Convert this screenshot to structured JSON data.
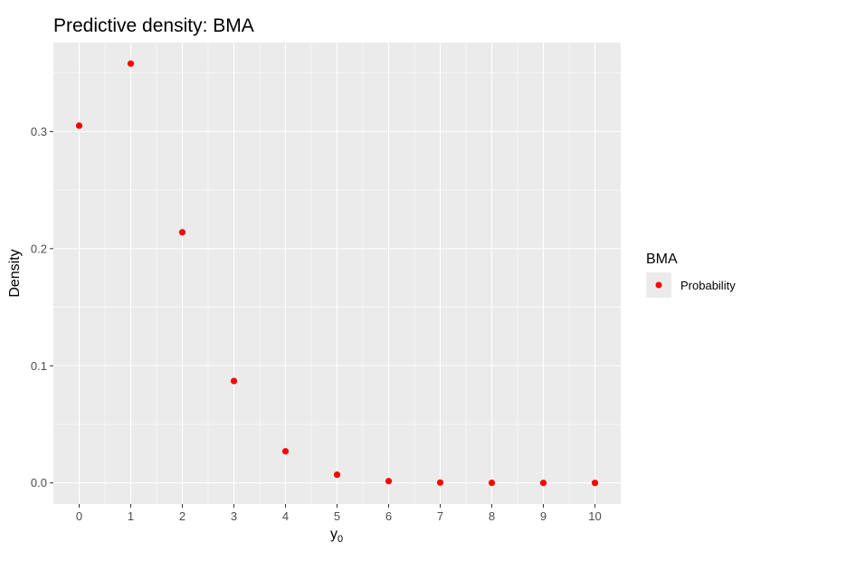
{
  "chart_data": {
    "type": "scatter",
    "title": "Predictive density: BMA",
    "xlabel_main": "y",
    "xlabel_sub": "0",
    "ylabel": "Density",
    "x": [
      0,
      1,
      2,
      3,
      4,
      5,
      6,
      7,
      8,
      9,
      10
    ],
    "series": [
      {
        "name": "Probability",
        "color": "#ff0000",
        "values": [
          0.305,
          0.358,
          0.214,
          0.087,
          0.027,
          0.007,
          0.0015,
          0.0003,
          0.0001,
          0.0,
          0.0
        ]
      }
    ],
    "xlim": [
      -0.5,
      10.5
    ],
    "ylim": [
      -0.018,
      0.376
    ],
    "x_ticks": [
      0,
      1,
      2,
      3,
      4,
      5,
      6,
      7,
      8,
      9,
      10
    ],
    "x_tick_labels": [
      "0",
      "1",
      "2",
      "3",
      "4",
      "5",
      "6",
      "7",
      "8",
      "9",
      "10"
    ],
    "y_ticks": [
      0.0,
      0.1,
      0.2,
      0.3
    ],
    "y_tick_labels": [
      "0.0",
      "0.1",
      "0.2",
      "0.3"
    ],
    "grid": true,
    "panel_background": "#ebebeb",
    "grid_color": "#ffffff",
    "legend": {
      "title": "BMA",
      "position": "right",
      "entries": [
        {
          "label": "Probability",
          "color": "#ff0000"
        }
      ]
    }
  }
}
